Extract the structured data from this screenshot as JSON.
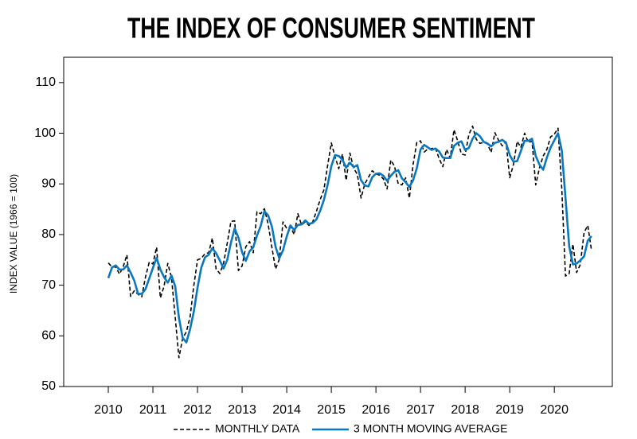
{
  "chart_data": {
    "type": "line",
    "title": "THE INDEX OF CONSUMER SENTIMENT",
    "y_label": "INDEX VALUE (1966 = 100)",
    "xlim": [
      2009,
      2021.3
    ],
    "xticks": [
      2010,
      2011,
      2012,
      2013,
      2014,
      2015,
      2016,
      2017,
      2018,
      2019,
      2020
    ],
    "ylim": [
      50,
      115
    ],
    "yticks": [
      50,
      60,
      70,
      80,
      90,
      100,
      110
    ],
    "grid": false,
    "legend": "bottom",
    "x": [
      2010,
      2010.083,
      2010.167,
      2010.25,
      2010.333,
      2010.417,
      2010.5,
      2010.583,
      2010.667,
      2010.75,
      2010.833,
      2010.917,
      2011,
      2011.083,
      2011.167,
      2011.25,
      2011.333,
      2011.417,
      2011.5,
      2011.583,
      2011.667,
      2011.75,
      2011.833,
      2011.917,
      2012,
      2012.083,
      2012.167,
      2012.25,
      2012.333,
      2012.417,
      2012.5,
      2012.583,
      2012.667,
      2012.75,
      2012.833,
      2012.917,
      2013,
      2013.083,
      2013.167,
      2013.25,
      2013.333,
      2013.417,
      2013.5,
      2013.583,
      2013.667,
      2013.75,
      2013.833,
      2013.917,
      2014,
      2014.083,
      2014.167,
      2014.25,
      2014.333,
      2014.417,
      2014.5,
      2014.583,
      2014.667,
      2014.75,
      2014.833,
      2014.917,
      2015,
      2015.083,
      2015.167,
      2015.25,
      2015.333,
      2015.417,
      2015.5,
      2015.583,
      2015.667,
      2015.75,
      2015.833,
      2015.917,
      2016,
      2016.083,
      2016.167,
      2016.25,
      2016.333,
      2016.417,
      2016.5,
      2016.583,
      2016.667,
      2016.75,
      2016.833,
      2016.917,
      2017,
      2017.083,
      2017.167,
      2017.25,
      2017.333,
      2017.417,
      2017.5,
      2017.583,
      2017.667,
      2017.75,
      2017.833,
      2017.917,
      2018,
      2018.083,
      2018.167,
      2018.25,
      2018.333,
      2018.417,
      2018.5,
      2018.583,
      2018.667,
      2018.75,
      2018.833,
      2018.917,
      2019,
      2019.083,
      2019.167,
      2019.25,
      2019.333,
      2019.417,
      2019.5,
      2019.583,
      2019.667,
      2019.75,
      2019.833,
      2019.917,
      2020,
      2020.083,
      2020.167,
      2020.25,
      2020.333,
      2020.417,
      2020.5,
      2020.583,
      2020.667,
      2020.75,
      2020.833
    ],
    "series": [
      {
        "name": "MONTHLY DATA",
        "color": "#000000",
        "dashed": true,
        "values": [
          74.4,
          73.6,
          73.6,
          72.2,
          73.6,
          76.0,
          67.8,
          68.9,
          68.2,
          67.7,
          71.6,
          74.5,
          74.2,
          77.5,
          67.5,
          69.8,
          74.3,
          71.5,
          63.7,
          55.7,
          59.5,
          60.8,
          63.7,
          69.9,
          75.0,
          75.3,
          76.2,
          76.4,
          79.3,
          73.2,
          72.3,
          74.3,
          78.3,
          82.6,
          82.7,
          72.9,
          73.8,
          77.6,
          78.6,
          76.4,
          84.5,
          84.1,
          85.1,
          82.1,
          77.5,
          73.2,
          75.1,
          82.5,
          81.2,
          81.6,
          80.0,
          84.1,
          81.9,
          82.5,
          81.8,
          82.5,
          84.6,
          86.9,
          88.8,
          93.6,
          98.1,
          95.4,
          93.0,
          95.9,
          90.7,
          96.1,
          93.1,
          91.9,
          87.2,
          90.0,
          91.3,
          92.6,
          92.0,
          91.7,
          91.0,
          89.0,
          94.7,
          93.5,
          90.0,
          89.8,
          91.2,
          87.2,
          93.8,
          98.2,
          98.5,
          96.3,
          96.9,
          97.0,
          97.1,
          95.0,
          93.4,
          96.8,
          95.1,
          100.7,
          98.5,
          95.9,
          95.7,
          99.7,
          101.4,
          98.8,
          98.0,
          98.2,
          97.9,
          96.2,
          100.1,
          98.6,
          97.5,
          98.3,
          91.2,
          93.8,
          98.4,
          97.2,
          100.0,
          98.2,
          98.4,
          89.8,
          93.2,
          95.5,
          96.8,
          99.3,
          99.8,
          101.0,
          89.1,
          71.8,
          72.3,
          78.1,
          72.5,
          74.1,
          80.4,
          81.8,
          76.9
        ]
      },
      {
        "name": "3 MONTH MOVING AVERAGE",
        "color": "#0a78c0",
        "dashed": false,
        "values": [
          71.4,
          73.5,
          73.9,
          73.1,
          73.1,
          73.9,
          72.5,
          70.9,
          68.3,
          68.3,
          69.2,
          71.3,
          73.4,
          75.4,
          73.1,
          71.6,
          70.5,
          71.9,
          69.8,
          63.6,
          59.6,
          58.7,
          61.3,
          64.8,
          69.5,
          73.4,
          75.5,
          76.0,
          77.3,
          76.3,
          74.9,
          73.3,
          75.0,
          78.4,
          81.2,
          79.4,
          76.5,
          74.8,
          76.7,
          77.5,
          79.8,
          81.7,
          84.6,
          83.8,
          81.6,
          77.6,
          75.3,
          76.9,
          79.6,
          81.8,
          80.9,
          81.9,
          82.0,
          82.8,
          82.1,
          82.3,
          83.0,
          84.7,
          86.8,
          89.8,
          93.5,
          95.7,
          95.5,
          94.8,
          93.2,
          94.2,
          93.3,
          93.7,
          90.7,
          89.7,
          89.5,
          91.3,
          92.0,
          92.1,
          91.6,
          90.6,
          91.6,
          92.4,
          92.7,
          91.1,
          90.3,
          89.4,
          90.7,
          93.1,
          96.8,
          97.7,
          97.2,
          96.7,
          97.0,
          96.4,
          95.2,
          95.1,
          95.1,
          97.5,
          98.1,
          98.4,
          96.7,
          97.1,
          98.9,
          100.0,
          99.4,
          98.3,
          98.0,
          97.4,
          98.1,
          98.3,
          98.7,
          98.1,
          95.7,
          94.4,
          94.5,
          96.5,
          98.5,
          98.5,
          98.9,
          95.5,
          93.8,
          92.8,
          95.2,
          97.2,
          98.6,
          100.0,
          96.6,
          87.3,
          77.7,
          74.1,
          74.3,
          74.9,
          75.7,
          78.8,
          79.7
        ]
      }
    ]
  }
}
